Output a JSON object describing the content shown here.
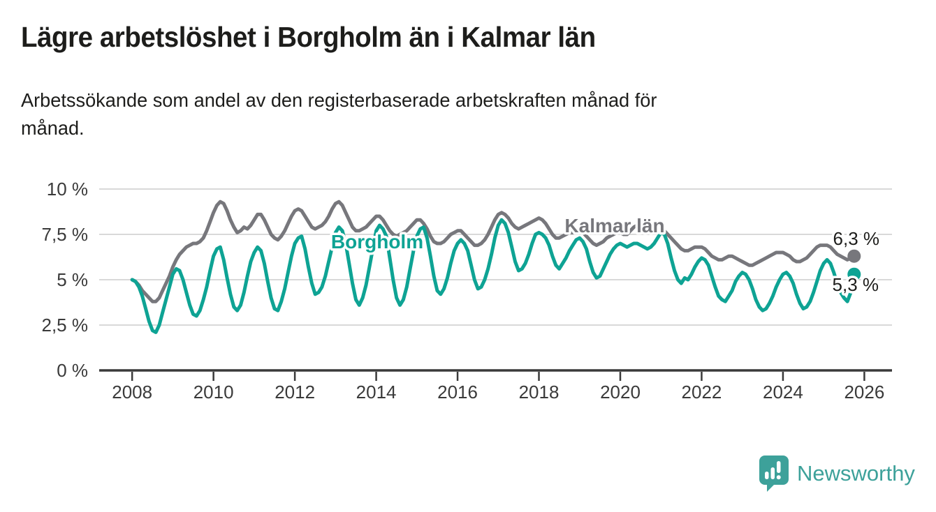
{
  "header": {
    "title": "Lägre arbetslöshet i Borgholm än i Kalmar län",
    "subtitle": "Arbetssökande som andel av den registerbaserade arbetskraften månad för månad.",
    "subtitle_lines": [
      "Arbetssökande som andel av den registerbaserade arbetskraften månad för",
      "månad."
    ]
  },
  "footer": {
    "brand": "Newsworthy",
    "brand_color": "#3da19a",
    "logo_icon": "bar-chart-speech-bubble-icon"
  },
  "chart_data": {
    "type": "line",
    "title": "Lägre arbetslöshet i Borgholm än i Kalmar län",
    "ylabel": "",
    "xlabel": "",
    "grid": "horizontal",
    "legend_position": "inline-labels",
    "xlim": [
      2007.19,
      2026.68
    ],
    "ylim": [
      0,
      10.5
    ],
    "x_start_year": 2008,
    "points_per_year": 12,
    "x_ticks": [
      2008,
      2010,
      2012,
      2014,
      2016,
      2018,
      2020,
      2022,
      2024,
      2026
    ],
    "y_ticks": [
      {
        "value": 0,
        "label": "0 %"
      },
      {
        "value": 2.5,
        "label": "2,5 %"
      },
      {
        "value": 5,
        "label": "5 %"
      },
      {
        "value": 7.5,
        "label": "7,5 %"
      },
      {
        "value": 10,
        "label": "10 %"
      }
    ],
    "colors": {
      "gridline": "#d9d9d9",
      "axis": "#3a3a3a",
      "text": "#1d1d1b"
    },
    "series": [
      {
        "name": "Kalmar län",
        "color": "#77777c",
        "end_label": "6,3 %",
        "end_value": 6.3,
        "values": [
          5.0,
          4.9,
          4.7,
          4.4,
          4.2,
          4.0,
          3.8,
          3.8,
          4.0,
          4.4,
          4.8,
          5.2,
          5.7,
          6.1,
          6.4,
          6.6,
          6.8,
          6.9,
          7.0,
          7.0,
          7.1,
          7.3,
          7.7,
          8.2,
          8.7,
          9.1,
          9.3,
          9.2,
          8.8,
          8.3,
          7.9,
          7.6,
          7.7,
          7.9,
          7.8,
          8.0,
          8.3,
          8.6,
          8.6,
          8.3,
          7.9,
          7.5,
          7.3,
          7.2,
          7.4,
          7.7,
          8.1,
          8.5,
          8.8,
          8.9,
          8.8,
          8.5,
          8.2,
          7.9,
          7.8,
          7.9,
          8.0,
          8.2,
          8.5,
          8.9,
          9.2,
          9.3,
          9.1,
          8.7,
          8.3,
          7.9,
          7.7,
          7.7,
          7.8,
          7.9,
          8.1,
          8.3,
          8.5,
          8.5,
          8.3,
          8.0,
          7.7,
          7.5,
          7.4,
          7.5,
          7.6,
          7.7,
          7.9,
          8.1,
          8.3,
          8.3,
          8.1,
          7.8,
          7.4,
          7.1,
          7.0,
          7.0,
          7.1,
          7.3,
          7.5,
          7.6,
          7.7,
          7.7,
          7.5,
          7.3,
          7.1,
          6.9,
          6.9,
          7.0,
          7.2,
          7.5,
          7.9,
          8.3,
          8.6,
          8.7,
          8.6,
          8.4,
          8.1,
          7.9,
          7.8,
          7.9,
          8.0,
          8.1,
          8.2,
          8.3,
          8.4,
          8.3,
          8.1,
          7.8,
          7.5,
          7.3,
          7.3,
          7.4,
          7.5,
          7.6,
          7.6,
          7.7,
          7.7,
          7.6,
          7.4,
          7.2,
          7.0,
          6.9,
          7.0,
          7.1,
          7.3,
          7.4,
          7.5,
          7.6,
          7.6,
          7.5,
          7.5,
          7.7,
          7.9,
          8.0,
          8.0,
          7.9,
          7.8,
          7.8,
          7.7,
          7.7,
          7.8,
          7.7,
          7.5,
          7.3,
          7.1,
          6.9,
          6.7,
          6.6,
          6.6,
          6.7,
          6.8,
          6.8,
          6.8,
          6.7,
          6.5,
          6.3,
          6.2,
          6.1,
          6.1,
          6.2,
          6.3,
          6.3,
          6.2,
          6.1,
          6.0,
          5.9,
          5.8,
          5.8,
          5.9,
          6.0,
          6.1,
          6.2,
          6.3,
          6.4,
          6.5,
          6.5,
          6.5,
          6.4,
          6.3,
          6.1,
          6.0,
          6.0,
          6.1,
          6.2,
          6.4,
          6.6,
          6.8,
          6.9,
          6.9,
          6.9,
          6.8,
          6.6,
          6.4,
          6.3,
          6.2,
          6.1,
          6.2,
          6.3
        ]
      },
      {
        "name": "Borgholm",
        "color": "#0ea394",
        "end_label": "5,3 %",
        "end_value": 5.3,
        "values": [
          5.0,
          4.9,
          4.6,
          4.1,
          3.4,
          2.7,
          2.2,
          2.1,
          2.5,
          3.2,
          3.9,
          4.6,
          5.3,
          5.6,
          5.5,
          5.0,
          4.3,
          3.6,
          3.1,
          3.0,
          3.3,
          3.9,
          4.6,
          5.5,
          6.3,
          6.7,
          6.8,
          6.1,
          5.1,
          4.2,
          3.5,
          3.3,
          3.6,
          4.3,
          5.2,
          6.0,
          6.5,
          6.8,
          6.6,
          5.9,
          4.9,
          4.0,
          3.4,
          3.3,
          3.8,
          4.5,
          5.4,
          6.3,
          7.0,
          7.3,
          7.4,
          6.7,
          5.7,
          4.8,
          4.2,
          4.3,
          4.6,
          5.2,
          6.0,
          6.8,
          7.6,
          7.9,
          7.7,
          7.0,
          5.9,
          4.8,
          3.9,
          3.6,
          4.0,
          4.7,
          5.7,
          6.7,
          7.7,
          8.0,
          7.8,
          7.4,
          6.2,
          5.0,
          4.0,
          3.6,
          3.9,
          4.6,
          5.6,
          6.6,
          7.4,
          7.8,
          7.9,
          7.3,
          6.3,
          5.2,
          4.4,
          4.2,
          4.5,
          5.1,
          5.9,
          6.6,
          7.0,
          7.2,
          7.0,
          6.6,
          5.8,
          5.0,
          4.5,
          4.6,
          5.0,
          5.6,
          6.4,
          7.3,
          8.0,
          8.3,
          8.1,
          7.6,
          6.8,
          6.0,
          5.5,
          5.6,
          5.9,
          6.4,
          7.0,
          7.5,
          7.6,
          7.5,
          7.3,
          6.9,
          6.3,
          5.8,
          5.6,
          5.9,
          6.2,
          6.6,
          6.9,
          7.2,
          7.3,
          7.1,
          6.7,
          6.0,
          5.4,
          5.1,
          5.2,
          5.6,
          6.0,
          6.4,
          6.7,
          6.9,
          7.0,
          6.9,
          6.8,
          6.9,
          7.0,
          7.0,
          6.9,
          6.8,
          6.7,
          6.8,
          7.0,
          7.3,
          7.6,
          7.5,
          7.0,
          6.2,
          5.5,
          5.0,
          4.8,
          5.1,
          5.0,
          5.3,
          5.7,
          6.0,
          6.2,
          6.1,
          5.8,
          5.2,
          4.6,
          4.1,
          3.9,
          3.8,
          4.1,
          4.4,
          4.9,
          5.2,
          5.4,
          5.3,
          5.0,
          4.5,
          3.9,
          3.5,
          3.3,
          3.4,
          3.7,
          4.1,
          4.6,
          5.0,
          5.3,
          5.4,
          5.2,
          4.8,
          4.2,
          3.7,
          3.4,
          3.5,
          3.8,
          4.3,
          4.9,
          5.5,
          5.9,
          6.1,
          5.9,
          5.4,
          4.8,
          4.3,
          4.0,
          3.8,
          4.3,
          5.3
        ]
      }
    ]
  }
}
